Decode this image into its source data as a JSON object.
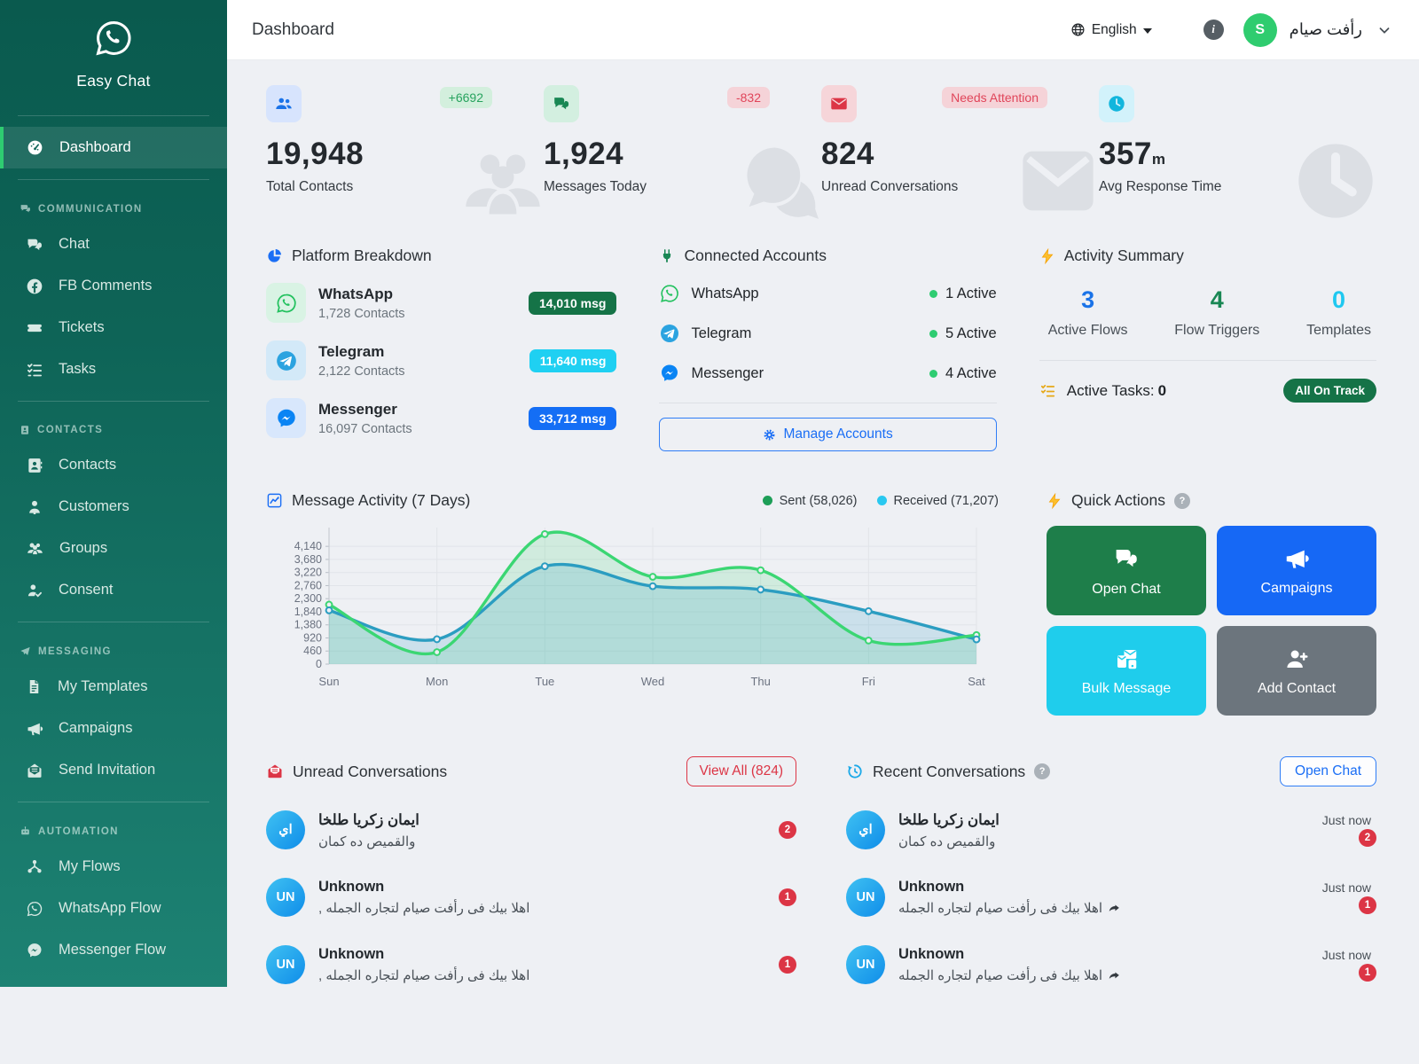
{
  "app": {
    "name": "Easy Chat"
  },
  "header": {
    "title": "Dashboard",
    "language": "English",
    "user_name": "رأفت صيام",
    "avatar_initial": "S"
  },
  "sidebar": {
    "logo_label": "Easy Chat",
    "dashboard_label": "Dashboard",
    "sections": [
      {
        "label": "COMMUNICATION",
        "items": [
          {
            "label": "Chat"
          },
          {
            "label": "FB Comments"
          },
          {
            "label": "Tickets"
          },
          {
            "label": "Tasks"
          }
        ]
      },
      {
        "label": "CONTACTS",
        "items": [
          {
            "label": "Contacts"
          },
          {
            "label": "Customers"
          },
          {
            "label": "Groups"
          },
          {
            "label": "Consent"
          }
        ]
      },
      {
        "label": "MESSAGING",
        "items": [
          {
            "label": "My Templates"
          },
          {
            "label": "Campaigns"
          },
          {
            "label": "Send Invitation"
          }
        ]
      },
      {
        "label": "AUTOMATION",
        "items": [
          {
            "label": "My Flows"
          },
          {
            "label": "WhatsApp Flow"
          },
          {
            "label": "Messenger Flow"
          }
        ]
      }
    ]
  },
  "stats": [
    {
      "value": "19,948",
      "label": "Total Contacts",
      "badge": "+6692"
    },
    {
      "value": "1,924",
      "label": "Messages Today",
      "badge": "-832"
    },
    {
      "value": "824",
      "label": "Unread Conversations",
      "badge": "Needs Attention"
    },
    {
      "value": "357",
      "unit": "m",
      "label": "Avg Response Time"
    }
  ],
  "platform_breakdown": {
    "title": "Platform Breakdown",
    "rows": [
      {
        "name": "WhatsApp",
        "contacts": "1,728 Contacts",
        "badge": "14,010 msg"
      },
      {
        "name": "Telegram",
        "contacts": "2,122 Contacts",
        "badge": "11,640 msg"
      },
      {
        "name": "Messenger",
        "contacts": "16,097 Contacts",
        "badge": "33,712 msg"
      }
    ]
  },
  "connected_accounts": {
    "title": "Connected Accounts",
    "rows": [
      {
        "name": "WhatsApp",
        "status": "1 Active"
      },
      {
        "name": "Telegram",
        "status": "5 Active"
      },
      {
        "name": "Messenger",
        "status": "4 Active"
      }
    ],
    "manage_label": "Manage Accounts"
  },
  "activity_summary": {
    "title": "Activity Summary",
    "metrics": [
      {
        "value": "3",
        "label": "Active Flows"
      },
      {
        "value": "4",
        "label": "Flow Triggers"
      },
      {
        "value": "0",
        "label": "Templates"
      }
    ],
    "tasks_label": "Active Tasks:",
    "tasks_value": "0",
    "badge": "All On Track"
  },
  "chart_data": {
    "type": "line",
    "title": "Message Activity (7 Days)",
    "categories": [
      "Sun",
      "Mon",
      "Tue",
      "Wed",
      "Thu",
      "Fri",
      "Sat"
    ],
    "series": [
      {
        "name": "Sent",
        "total": "58,026",
        "legend": "Sent (58,026)",
        "color": "#3bd673",
        "dot": "#1d9e57",
        "fill": "rgba(59,214,115,0.16)",
        "values": [
          2090,
          420,
          4570,
          3070,
          3300,
          830,
          1020
        ]
      },
      {
        "name": "Received",
        "total": "71,207",
        "legend": "Received (71,207)",
        "color": "#2b9dc1",
        "dot": "#29c8f0",
        "fill": "rgba(43,157,193,0.18)",
        "values": [
          1890,
          875,
          3440,
          2740,
          2620,
          1860,
          870
        ]
      }
    ],
    "ylim": [
      0,
      4800
    ],
    "yticks": [
      0,
      460,
      920,
      1380,
      1840,
      2300,
      2760,
      3220,
      3680,
      4140
    ],
    "grid": true,
    "legend_position": "top-right",
    "xlabel": "",
    "ylabel": ""
  },
  "quick_actions": {
    "title": "Quick Actions",
    "buttons": [
      {
        "label": "Open Chat"
      },
      {
        "label": "Campaigns"
      },
      {
        "label": "Bulk Message"
      },
      {
        "label": "Add Contact"
      }
    ]
  },
  "unread": {
    "title": "Unread Conversations",
    "view_all_label": "View All (824)",
    "items": [
      {
        "avatar": "اي",
        "name": "ايمان زكريا طلخا",
        "preview": "والقميص ده كمان",
        "count": "2"
      },
      {
        "avatar": "UN",
        "name": "Unknown",
        "preview": ", اهلا بيك فى رأفت صيام لتجاره الجمله",
        "count": "1"
      },
      {
        "avatar": "UN",
        "name": "Unknown",
        "preview": ", اهلا بيك فى رأفت صيام لتجاره الجمله",
        "count": "1"
      }
    ]
  },
  "recent": {
    "title": "Recent Conversations",
    "open_chat_label": "Open Chat",
    "items": [
      {
        "avatar": "اي",
        "name": "ايمان زكريا طلخا",
        "preview": "والقميص ده كمان",
        "time": "Just now",
        "count": "2",
        "forwarded": false
      },
      {
        "avatar": "UN",
        "name": "Unknown",
        "preview": "اهلا بيك فى رأفت صيام لتجاره الجمله",
        "time": "Just now",
        "count": "1",
        "forwarded": true
      },
      {
        "avatar": "UN",
        "name": "Unknown",
        "preview": "اهلا بيك فى رأفت صيام لتجاره الجمله",
        "time": "Just now",
        "count": "1",
        "forwarded": true
      }
    ]
  },
  "colors": {
    "sidebar_top": "#0a5a4e",
    "sidebar_bottom": "#1d8273",
    "accent_green": "#2ecc71",
    "brand_whatsapp": "#22c15e",
    "brand_telegram": "#2ba3e0",
    "brand_messenger": "#0a84f4",
    "danger": "#dc3545",
    "primary_blue": "#1a6ef5",
    "cyan": "#1fcdec",
    "dark_green": "#157347",
    "page_bg": "#eef0f4"
  }
}
